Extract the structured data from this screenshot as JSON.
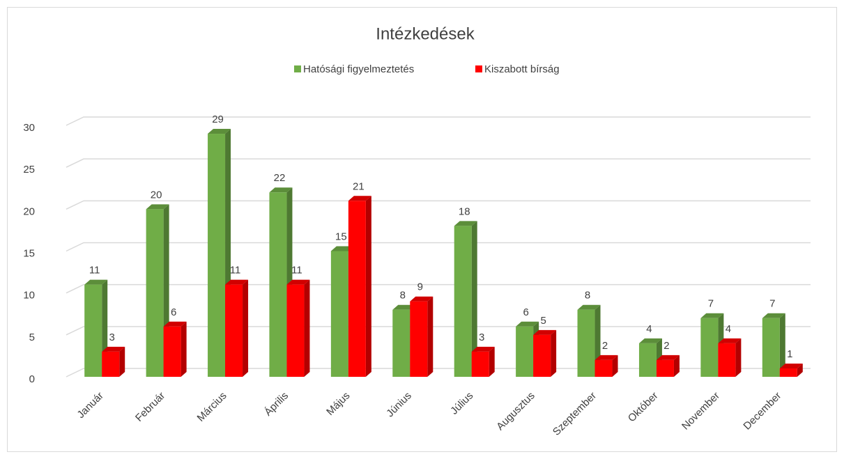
{
  "chart_data": {
    "type": "bar3d",
    "title": "Intézkedések",
    "categories": [
      "Január",
      "Február",
      "Március",
      "Április",
      "Május",
      "Június",
      "Július",
      "Augusztus",
      "Szeptember",
      "Október",
      "November",
      "December"
    ],
    "series": [
      {
        "name": "Hatósági figyelmeztetés",
        "color": "#70ad47",
        "values": [
          11,
          20,
          29,
          22,
          15,
          8,
          18,
          6,
          8,
          4,
          7,
          7
        ]
      },
      {
        "name": "Kiszabott bírság",
        "color": "#ff0000",
        "values": [
          3,
          6,
          11,
          11,
          21,
          9,
          3,
          5,
          2,
          2,
          4,
          1
        ]
      }
    ],
    "ylim": [
      0,
      30
    ],
    "yticks": [
      0,
      5,
      10,
      15,
      20,
      25,
      30
    ],
    "grid": true,
    "legend": "top"
  }
}
